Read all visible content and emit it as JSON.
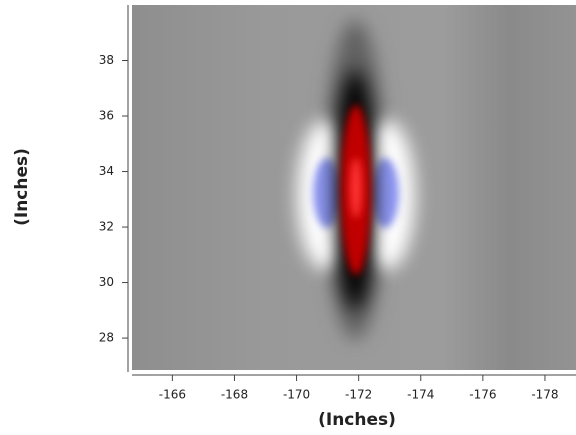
{
  "chart_data": {
    "type": "heatmap",
    "xlabel": "(Inches)",
    "ylabel": "(Inches)",
    "xlim": [
      -164.7,
      -179.0
    ],
    "xticks": [
      -166,
      -168,
      -170,
      -172,
      -174,
      -176,
      -178
    ],
    "ylim": [
      26.85,
      40.0
    ],
    "yticks": [
      28,
      30,
      32,
      34,
      36,
      38
    ],
    "grid": false
  }
}
